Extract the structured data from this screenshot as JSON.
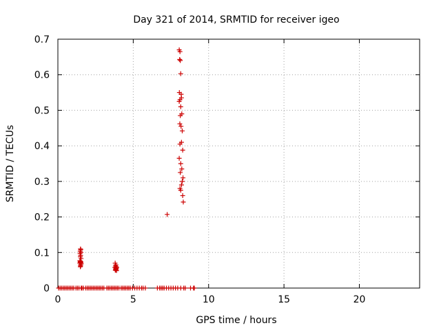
{
  "chart_data": {
    "type": "scatter",
    "title": "Day 321 of 2014, SRMTID for receiver igeo",
    "xlabel": "GPS time / hours",
    "ylabel": "SRMTID / TECUs",
    "xlim": [
      0,
      24
    ],
    "ylim": [
      0,
      0.7
    ],
    "xticks": [
      0,
      5,
      10,
      15,
      20
    ],
    "yticks": [
      0,
      0.1,
      0.2,
      0.3,
      0.4,
      0.5,
      0.6,
      0.7
    ],
    "xtick_labels": [
      "0",
      "5",
      "10",
      "15",
      "20"
    ],
    "ytick_labels": [
      "0",
      "0.1",
      "0.2",
      "0.3",
      "0.4",
      "0.5",
      "0.6",
      "0.7"
    ],
    "grid": true,
    "marker": "+",
    "series": [
      {
        "name": "SRMTID",
        "color": "#cc0000",
        "x": [
          0.05,
          0.15,
          0.25,
          0.35,
          0.45,
          0.55,
          0.65,
          0.75,
          0.85,
          0.95,
          1.05,
          1.2,
          1.3,
          1.4,
          1.55,
          1.6,
          1.7,
          1.85,
          1.95,
          2.05,
          2.15,
          2.25,
          2.35,
          2.45,
          2.55,
          2.65,
          2.75,
          2.85,
          2.95,
          3.05,
          3.25,
          3.35,
          3.45,
          3.55,
          3.65,
          3.75,
          3.85,
          3.95,
          4.05,
          4.2,
          4.3,
          4.4,
          4.5,
          4.6,
          4.7,
          4.8,
          4.95,
          5.1,
          5.25,
          5.4,
          5.55,
          5.65,
          5.8,
          6.6,
          6.75,
          6.85,
          6.95,
          7.05,
          7.2,
          7.35,
          7.5,
          7.65,
          7.8,
          7.95,
          8.15,
          8.35,
          8.45,
          8.8,
          9.0,
          9.05,
          1.5,
          1.52,
          1.48,
          1.53,
          1.47,
          1.51,
          1.49,
          1.54,
          1.46,
          1.5,
          1.52,
          1.48,
          1.5,
          1.45,
          1.55,
          1.5,
          1.51,
          1.49,
          1.53,
          1.47,
          3.8,
          3.85,
          3.82,
          3.88,
          3.78,
          3.9,
          3.84,
          3.86,
          3.83,
          3.87,
          3.81,
          3.89,
          7.25,
          8.05,
          8.1,
          8.08,
          8.12,
          8.15,
          8.06,
          8.18,
          8.2,
          8.1,
          8.05,
          8.15,
          8.22,
          8.12,
          8.09,
          8.17,
          8.25,
          8.2,
          8.1,
          8.28,
          8.05,
          8.15,
          8.22,
          8.12,
          8.3,
          8.25,
          8.2,
          8.1,
          8.15,
          8.28,
          8.32
        ],
        "y": [
          0,
          0,
          0,
          0,
          0,
          0,
          0,
          0,
          0,
          0,
          0,
          0,
          0,
          0,
          0,
          0,
          0,
          0,
          0,
          0,
          0,
          0,
          0,
          0,
          0,
          0,
          0,
          0,
          0,
          0,
          0,
          0,
          0,
          0,
          0,
          0,
          0,
          0,
          0,
          0,
          0,
          0,
          0,
          0,
          0,
          0,
          0,
          0,
          0,
          0,
          0,
          0,
          0,
          0,
          0,
          0,
          0,
          0,
          0,
          0,
          0,
          0,
          0,
          0,
          0,
          0,
          0,
          0,
          0,
          0,
          0.11,
          0.108,
          0.104,
          0.1,
          0.097,
          0.092,
          0.088,
          0.083,
          0.077,
          0.075,
          0.074,
          0.073,
          0.072,
          0.07,
          0.068,
          0.065,
          0.062,
          0.06,
          0.071,
          0.076,
          0.07,
          0.065,
          0.062,
          0.06,
          0.058,
          0.057,
          0.056,
          0.055,
          0.053,
          0.052,
          0.05,
          0.049,
          0.207,
          0.67,
          0.665,
          0.643,
          0.64,
          0.603,
          0.55,
          0.545,
          0.535,
          0.53,
          0.525,
          0.51,
          0.49,
          0.485,
          0.462,
          0.455,
          0.442,
          0.41,
          0.405,
          0.388,
          0.365,
          0.35,
          0.335,
          0.325,
          0.31,
          0.3,
          0.29,
          0.28,
          0.275,
          0.26,
          0.242
        ]
      }
    ]
  }
}
